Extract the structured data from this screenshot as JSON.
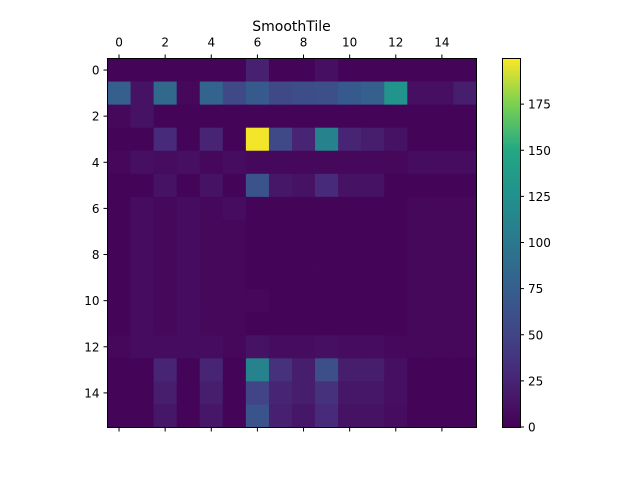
{
  "chart_data": {
    "type": "heatmap",
    "title": "SmoothTile",
    "xlabel": "",
    "ylabel": "",
    "x_ticks": [
      0,
      2,
      4,
      6,
      8,
      10,
      12,
      14
    ],
    "y_ticks": [
      0,
      2,
      4,
      6,
      8,
      10,
      12,
      14
    ],
    "x_tick_position": "top",
    "colormap": "viridis",
    "vmin": 0,
    "vmax": 200,
    "colorbar_ticks": [
      0,
      25,
      50,
      75,
      100,
      125,
      150,
      175
    ],
    "matrix": [
      [
        3,
        3,
        3,
        3,
        3,
        3,
        22,
        3,
        3,
        10,
        3,
        3,
        3,
        3,
        3,
        3
      ],
      [
        75,
        12,
        85,
        5,
        80,
        55,
        70,
        55,
        58,
        60,
        70,
        75,
        128,
        10,
        10,
        20
      ],
      [
        5,
        12,
        3,
        3,
        3,
        3,
        3,
        3,
        3,
        3,
        3,
        3,
        3,
        3,
        3,
        3
      ],
      [
        3,
        3,
        30,
        3,
        25,
        3,
        198,
        55,
        25,
        110,
        25,
        20,
        12,
        3,
        3,
        3
      ],
      [
        5,
        10,
        8,
        10,
        5,
        8,
        5,
        5,
        5,
        5,
        5,
        5,
        5,
        8,
        8,
        8
      ],
      [
        3,
        3,
        12,
        3,
        12,
        3,
        65,
        15,
        12,
        30,
        12,
        12,
        3,
        3,
        3,
        3
      ],
      [
        3,
        8,
        5,
        8,
        5,
        8,
        3,
        3,
        3,
        3,
        3,
        3,
        3,
        5,
        5,
        5
      ],
      [
        3,
        8,
        5,
        8,
        5,
        5,
        3,
        3,
        3,
        3,
        3,
        3,
        3,
        5,
        5,
        5
      ],
      [
        3,
        8,
        5,
        8,
        5,
        5,
        3,
        3,
        3,
        3,
        3,
        3,
        3,
        5,
        5,
        5
      ],
      [
        3,
        8,
        5,
        8,
        5,
        5,
        3,
        3,
        3,
        3,
        3,
        3,
        3,
        5,
        5,
        5
      ],
      [
        3,
        8,
        5,
        8,
        5,
        5,
        5,
        3,
        3,
        3,
        3,
        3,
        3,
        5,
        5,
        5
      ],
      [
        3,
        8,
        5,
        8,
        5,
        5,
        3,
        3,
        3,
        3,
        3,
        3,
        3,
        5,
        5,
        5
      ],
      [
        5,
        8,
        8,
        8,
        8,
        5,
        12,
        8,
        8,
        10,
        8,
        8,
        5,
        5,
        5,
        5
      ],
      [
        3,
        3,
        25,
        3,
        25,
        3,
        110,
        35,
        20,
        60,
        20,
        20,
        10,
        3,
        3,
        3
      ],
      [
        3,
        3,
        20,
        3,
        20,
        3,
        50,
        25,
        20,
        35,
        15,
        15,
        10,
        3,
        3,
        3
      ],
      [
        3,
        3,
        15,
        3,
        15,
        3,
        65,
        22,
        15,
        30,
        12,
        12,
        8,
        3,
        3,
        3
      ]
    ]
  }
}
